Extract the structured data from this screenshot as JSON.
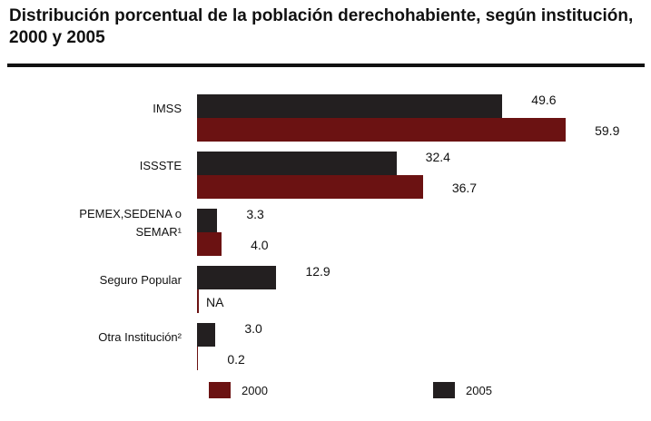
{
  "chart_data": {
    "type": "hbar",
    "title": "Distribución porcentual de la población derechohabiente, según institución, 2000 y 2005",
    "categories": [
      "IMSS",
      "ISSSTE",
      "PEMEX,SEDENA o SEMAR¹",
      "Seguro Popular",
      "Otra Institución²"
    ],
    "series": [
      {
        "name": "2005",
        "color": "#231f20",
        "values": [
          49.6,
          32.4,
          3.3,
          12.9,
          3.0
        ],
        "value_labels": [
          "49.6",
          "32.4",
          "3.3",
          "12.9",
          "3.0"
        ]
      },
      {
        "name": "2000",
        "color": "#6b1212",
        "values": [
          59.9,
          36.7,
          4.0,
          null,
          0.2
        ],
        "value_labels": [
          "59.9",
          "36.7",
          "4.0",
          "NA",
          "0.2"
        ]
      }
    ],
    "legend": "bottom"
  }
}
